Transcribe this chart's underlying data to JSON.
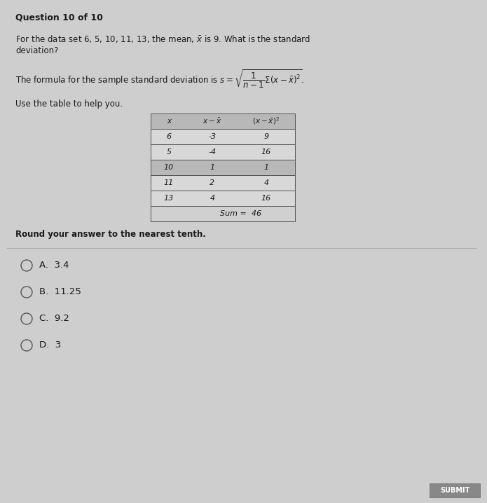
{
  "title": "Question 10 of 10",
  "question_line1": "For the data set 6, 5, 10, 11, 13, the mean, $\\bar{x}$ is 9. What is the standard",
  "question_line2": "deviation?",
  "formula_text": "The formula for the sample standard deviation is $s = \\sqrt{\\dfrac{1}{n-1}\\Sigma(x - \\bar{x})^2}$.",
  "table_instruction": "Use the table to help you.",
  "table_col0_header": "x",
  "table_col1_header": "$x - \\bar{x}$",
  "table_col2_header": "$(x - \\bar{x})^2$",
  "table_rows": [
    [
      "6",
      "-3",
      "9"
    ],
    [
      "5",
      "-4",
      "16"
    ],
    [
      "10",
      "1",
      "1"
    ],
    [
      "11",
      "2",
      "4"
    ],
    [
      "13",
      "4",
      "16"
    ]
  ],
  "table_sum_label": "Sum =",
  "table_sum_value": "46",
  "round_instruction": "Round your answer to the nearest tenth.",
  "choices": [
    {
      "label": "A.",
      "text": "3.4"
    },
    {
      "label": "B.",
      "text": "11.25"
    },
    {
      "label": "C.",
      "text": "9.2"
    },
    {
      "label": "D.",
      "text": "3"
    }
  ],
  "bg_color": "#cecece",
  "header_row_color": "#b8b8b8",
  "light_row_color": "#d8d8d8",
  "dark_row_color": "#b8b8b8",
  "sum_row_color": "#d0d0d0",
  "table_border_color": "#555555",
  "text_color": "#1a1a1a",
  "submit_btn_color": "#888888",
  "submit_btn_text": "SUBMIT",
  "fig_width": 6.95,
  "fig_height": 7.18,
  "dpi": 100
}
